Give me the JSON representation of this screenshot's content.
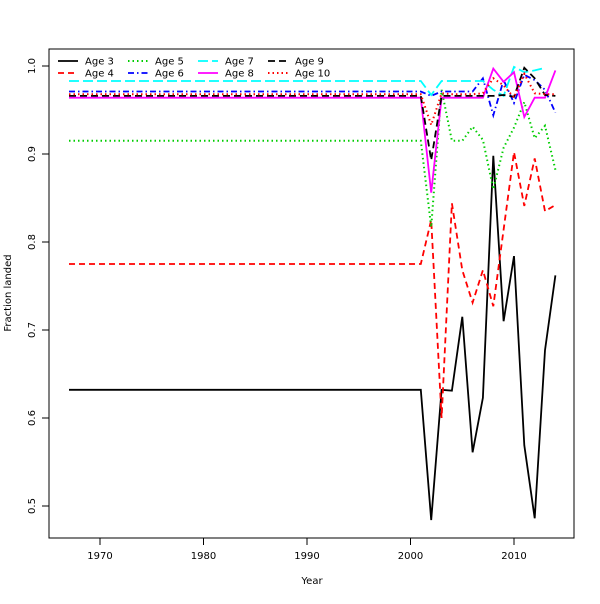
{
  "chart_data": {
    "type": "line",
    "title": "",
    "xlabel": "Year",
    "ylabel": "Fraction landed",
    "xlim": [
      1965,
      2016
    ],
    "ylim": [
      0.462,
      1.019
    ],
    "xticks": [
      1970,
      1980,
      1990,
      2000,
      2010
    ],
    "yticks": [
      0.5,
      0.6,
      0.7,
      0.8,
      0.9,
      1.0
    ],
    "legend_position": "top-left",
    "x": [
      1967,
      2001,
      2002,
      2003,
      2004,
      2005,
      2006,
      2007,
      2008,
      2009,
      2010,
      2011,
      2012,
      2013,
      2014
    ],
    "series": [
      {
        "name": "Age 3",
        "color": "#000000",
        "dash": "",
        "values": [
          0.632,
          0.632,
          0.484,
          0.632,
          0.631,
          0.715,
          0.561,
          0.623,
          0.898,
          0.71,
          0.784,
          0.569,
          0.486,
          0.677,
          0.762
        ]
      },
      {
        "name": "Age 4",
        "color": "#FF0000",
        "dash": "6,4",
        "values": [
          0.775,
          0.775,
          0.825,
          0.6,
          0.844,
          0.768,
          0.731,
          0.768,
          0.727,
          0.814,
          0.902,
          0.841,
          0.895,
          0.835,
          0.842
        ]
      },
      {
        "name": "Age 5",
        "color": "#00CD00",
        "dash": "1.5,3",
        "values": [
          0.915,
          0.915,
          0.817,
          0.973,
          0.915,
          0.915,
          0.931,
          0.916,
          0.86,
          0.907,
          0.93,
          0.959,
          0.918,
          0.932,
          0.882
        ]
      },
      {
        "name": "Age 6",
        "color": "#0000FF",
        "dash": "6,3,1.5,3",
        "values": [
          0.971,
          0.971,
          0.966,
          0.971,
          0.971,
          0.971,
          0.971,
          0.986,
          0.944,
          0.984,
          0.958,
          0.99,
          0.984,
          0.973,
          0.947
        ]
      },
      {
        "name": "Age 7",
        "color": "#00FFFF",
        "dash": "10,4",
        "values": [
          0.983,
          0.983,
          0.967,
          0.983,
          0.983,
          0.983,
          0.983,
          0.983,
          0.973,
          0.966,
          0.999,
          0.993,
          0.995,
          0.998,
          null
        ]
      },
      {
        "name": "Age 8",
        "color": "#FF00FF",
        "dash": "",
        "values": [
          0.964,
          0.964,
          0.856,
          0.964,
          0.964,
          0.964,
          0.964,
          0.964,
          0.997,
          0.982,
          0.993,
          0.942,
          0.964,
          0.964,
          0.995
        ]
      },
      {
        "name": "Age 9",
        "color": "#000000",
        "dash": "7,4",
        "values": [
          0.966,
          0.966,
          0.893,
          0.966,
          0.966,
          0.966,
          0.966,
          0.966,
          0.966,
          0.967,
          0.965,
          0.998,
          0.986,
          0.967,
          0.966
        ]
      },
      {
        "name": "Age 10",
        "color": "#FF0000",
        "dash": "1.5,3",
        "values": [
          0.968,
          0.968,
          0.933,
          0.969,
          0.968,
          0.968,
          0.968,
          0.969,
          0.986,
          0.978,
          0.964,
          0.991,
          0.969,
          0.968,
          0.968
        ]
      }
    ]
  }
}
